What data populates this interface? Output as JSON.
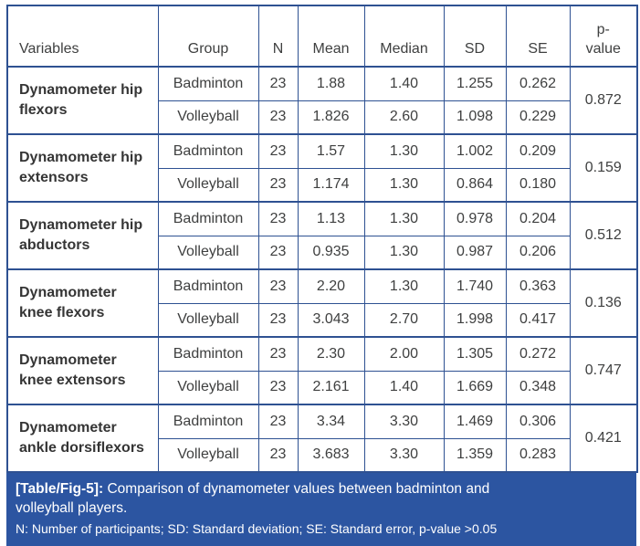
{
  "colors": {
    "border_blue": "#2e5192",
    "header_bg": "#e9ebf4",
    "header_text": "#2a4da1",
    "body_text": "#3f4040",
    "variable_text": "#353535",
    "caption_bg": "#2c55a1",
    "caption_text": "#ffffff"
  },
  "table": {
    "columns": [
      "Variables",
      "Group",
      "N",
      "Mean",
      "Median",
      "SD",
      "SE",
      "p-\nvalue"
    ],
    "rows": [
      {
        "variable": "Dynamometer hip flexors",
        "p_value": "0.872",
        "groups": [
          {
            "group": "Badminton",
            "n": "23",
            "mean": "1.88",
            "median": "1.40",
            "sd": "1.255",
            "se": "0.262"
          },
          {
            "group": "Volleyball",
            "n": "23",
            "mean": "1.826",
            "median": "2.60",
            "sd": "1.098",
            "se": "0.229"
          }
        ]
      },
      {
        "variable": "Dynamometer hip extensors",
        "p_value": "0.159",
        "groups": [
          {
            "group": "Badminton",
            "n": "23",
            "mean": "1.57",
            "median": "1.30",
            "sd": "1.002",
            "se": "0.209"
          },
          {
            "group": "Volleyball",
            "n": "23",
            "mean": "1.174",
            "median": "1.30",
            "sd": "0.864",
            "se": "0.180"
          }
        ]
      },
      {
        "variable": "Dynamometer hip abductors",
        "p_value": "0.512",
        "groups": [
          {
            "group": "Badminton",
            "n": "23",
            "mean": "1.13",
            "median": "1.30",
            "sd": "0.978",
            "se": "0.204"
          },
          {
            "group": "Volleyball",
            "n": "23",
            "mean": "0.935",
            "median": "1.30",
            "sd": "0.987",
            "se": "0.206"
          }
        ]
      },
      {
        "variable": "Dynamometer knee flexors",
        "p_value": "0.136",
        "groups": [
          {
            "group": "Badminton",
            "n": "23",
            "mean": "2.20",
            "median": "1.30",
            "sd": "1.740",
            "se": "0.363"
          },
          {
            "group": "Volleyball",
            "n": "23",
            "mean": "3.043",
            "median": "2.70",
            "sd": "1.998",
            "se": "0.417"
          }
        ]
      },
      {
        "variable": "Dynamometer knee extensors",
        "p_value": "0.747",
        "groups": [
          {
            "group": "Badminton",
            "n": "23",
            "mean": "2.30",
            "median": "2.00",
            "sd": "1.305",
            "se": "0.272"
          },
          {
            "group": "Volleyball",
            "n": "23",
            "mean": "2.161",
            "median": "1.40",
            "sd": "1.669",
            "se": "0.348"
          }
        ]
      },
      {
        "variable": "Dynamometer ankle dorsiflexors",
        "p_value": "0.421",
        "groups": [
          {
            "group": "Badminton",
            "n": "23",
            "mean": "3.34",
            "median": "3.30",
            "sd": "1.469",
            "se": "0.306"
          },
          {
            "group": "Volleyball",
            "n": "23",
            "mean": "3.683",
            "median": "3.30",
            "sd": "1.359",
            "se": "0.283"
          }
        ]
      }
    ]
  },
  "caption": {
    "label": "[Table/Fig-5]:",
    "text": "Comparison of dynamometer values between badminton and volleyball players.",
    "footnote": "N: Number of participants; SD: Standard deviation; SE: Standard error, p-value >0.05"
  }
}
